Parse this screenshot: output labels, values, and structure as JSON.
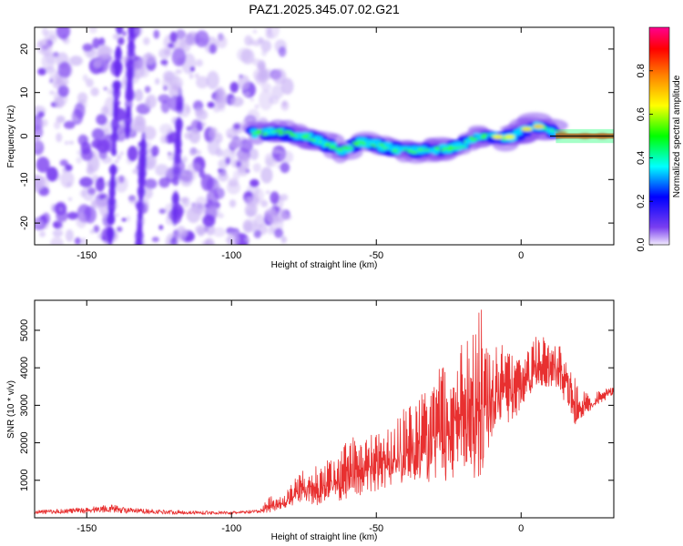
{
  "page_title": "PAZ1.2025.345.07.02.G21",
  "chart_data": [
    {
      "type": "heatmap",
      "title": "PAZ1.2025.345.07.02.G21",
      "xlabel": "Height of straight line (km)",
      "ylabel": "Frequency (Hz)",
      "xlim": [
        -168,
        32
      ],
      "ylim": [
        -25,
        25
      ],
      "xticks": [
        -150,
        -100,
        -50,
        0
      ],
      "xtick_labels": [
        "-150",
        "-100",
        "-50",
        "0"
      ],
      "yticks": [
        -20,
        -10,
        0,
        10,
        20
      ],
      "ytick_labels": [
        "-20",
        "-10",
        "0",
        "10",
        "20"
      ],
      "colorbar": {
        "label": "Normalized spectral amplitude",
        "range": [
          0,
          1
        ],
        "ticks": [
          0.0,
          0.2,
          0.4,
          0.6,
          0.8
        ],
        "tick_labels": [
          "0.0",
          "0.2",
          "0.4",
          "0.6",
          "0.8"
        ],
        "colormap": [
          "#e8dcf8",
          "#7a3ff0",
          "#0000ff",
          "#00ffff",
          "#00ff00",
          "#ffff00",
          "#ff8000",
          "#ff0000",
          "#ff0090"
        ]
      },
      "ridge": {
        "x": [
          -93,
          -85,
          -75,
          -68,
          -62,
          -56,
          -50,
          -44,
          -38,
          -32,
          -26,
          -20,
          -15,
          -10,
          -5,
          0,
          5,
          10,
          15,
          20,
          25,
          32
        ],
        "freq": [
          0.5,
          1,
          0,
          -1.5,
          -3.5,
          -1.5,
          -2,
          -3,
          -3.5,
          -3,
          -3,
          -2,
          0,
          0,
          -0.5,
          1,
          2.5,
          1,
          0.5,
          0,
          0,
          0
        ]
      },
      "noise_region_x": [
        -168,
        -85
      ],
      "line_color": "#000000"
    },
    {
      "type": "line",
      "xlabel": "Height of straight line (km)",
      "ylabel": "SNR (10 * v/v)",
      "xlim": [
        -168,
        32
      ],
      "ylim": [
        0,
        5800
      ],
      "xticks": [
        -150,
        -100,
        -50,
        0
      ],
      "xtick_labels": [
        "-150",
        "-100",
        "-50",
        "0"
      ],
      "yticks": [
        1000,
        2000,
        3000,
        4000,
        5000
      ],
      "ytick_labels": [
        "1000",
        "2000",
        "3000",
        "4000",
        "5000"
      ],
      "color": "#e83030",
      "series": [
        {
          "name": "SNR",
          "x": [
            -168,
            -160,
            -150,
            -142,
            -135,
            -125,
            -115,
            -100,
            -90,
            -87,
            -84,
            -80,
            -76,
            -72,
            -68,
            -64,
            -60,
            -55,
            -50,
            -45,
            -40,
            -35,
            -30,
            -25,
            -20,
            -15,
            -12,
            -10,
            -6,
            -2,
            0,
            3,
            6,
            8,
            10,
            13,
            15,
            17,
            18,
            20,
            25,
            30,
            32
          ],
          "y_min": [
            100,
            110,
            120,
            150,
            110,
            100,
            90,
            90,
            120,
            130,
            220,
            300,
            400,
            330,
            360,
            420,
            480,
            600,
            700,
            820,
            900,
            900,
            1000,
            900,
            1200,
            1000,
            1400,
            2200,
            2500,
            2600,
            3000,
            3300,
            3600,
            3300,
            3500,
            3500,
            3000,
            2600,
            2400,
            2600,
            2900,
            3200,
            3300
          ],
          "y_max": [
            200,
            230,
            280,
            360,
            260,
            220,
            190,
            170,
            220,
            650,
            480,
            800,
            1300,
            1400,
            1500,
            1700,
            2100,
            2200,
            2300,
            2400,
            3100,
            3200,
            3800,
            4400,
            4800,
            5800,
            5300,
            4700,
            4600,
            4300,
            4200,
            4500,
            5000,
            4800,
            4600,
            4800,
            4500,
            5100,
            4000,
            3400,
            3300,
            3500,
            3450
          ]
        }
      ]
    }
  ]
}
